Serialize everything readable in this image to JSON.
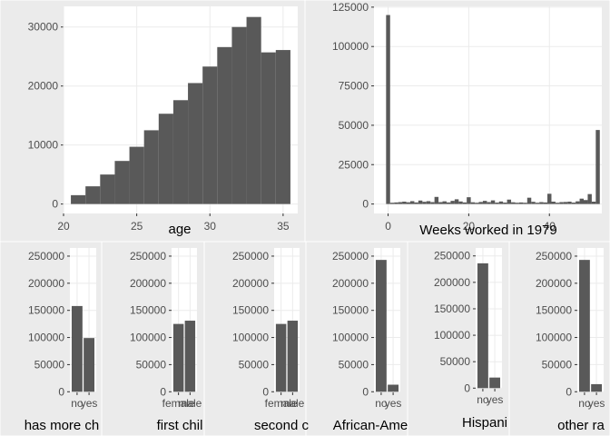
{
  "chart_data": [
    {
      "type": "bar",
      "name": "age-histogram",
      "xlabel": "age",
      "x_ticks": [
        20,
        25,
        30,
        35
      ],
      "y_ticks": [
        0,
        10000,
        20000,
        30000
      ],
      "xlim": [
        20,
        36
      ],
      "ylim": [
        -1600,
        33500
      ],
      "bin_width": 1,
      "bins": [
        21,
        22,
        23,
        24,
        25,
        26,
        27,
        28,
        29,
        30,
        31,
        32,
        33,
        34,
        35
      ],
      "values": [
        1500,
        3000,
        5000,
        7300,
        9700,
        12500,
        15300,
        17600,
        20500,
        23300,
        26600,
        30000,
        31700,
        25700,
        26100
      ]
    },
    {
      "type": "bar",
      "name": "weeks-histogram",
      "xlabel": "Weeks worked in 1979",
      "x_ticks": [
        0,
        20,
        40
      ],
      "y_ticks": [
        0,
        25000,
        50000,
        75000,
        100000,
        125000
      ],
      "xlim": [
        -3.5,
        53
      ],
      "ylim": [
        -6000,
        125500
      ],
      "bin_width": 1,
      "bins": [
        0,
        1,
        2,
        3,
        4,
        5,
        6,
        7,
        8,
        9,
        10,
        11,
        12,
        13,
        14,
        15,
        16,
        17,
        18,
        19,
        20,
        21,
        22,
        23,
        24,
        25,
        26,
        27,
        28,
        29,
        30,
        31,
        32,
        33,
        34,
        35,
        36,
        37,
        38,
        39,
        40,
        41,
        42,
        43,
        44,
        45,
        46,
        47,
        48,
        49,
        50,
        51,
        52
      ],
      "values": [
        120000,
        800,
        1000,
        1200,
        1500,
        1100,
        1800,
        1000,
        2200,
        1400,
        1800,
        1200,
        4500,
        1200,
        1700,
        1000,
        2000,
        3000,
        1600,
        1000,
        4300,
        1100,
        800,
        1300,
        2000,
        1200,
        2300,
        900,
        1600,
        900,
        2800,
        1100,
        800,
        1000,
        800,
        4000,
        1400,
        800,
        1200,
        1000,
        6500,
        1500,
        800,
        1200,
        1300,
        1500,
        900,
        1700,
        3400,
        2500,
        6300,
        1500,
        47000
      ]
    },
    {
      "type": "bar",
      "name": "has-more-children",
      "xlabel": "has more ch",
      "categories": [
        "no",
        "yes"
      ],
      "values": [
        158000,
        99000
      ],
      "y_ticks": [
        0,
        50000,
        100000,
        150000,
        200000,
        250000
      ],
      "ylim": [
        -1200,
        265000
      ]
    },
    {
      "type": "bar",
      "name": "first-child",
      "xlabel": "first chil",
      "categories": [
        "female",
        "male"
      ],
      "values": [
        125000,
        131000
      ],
      "y_ticks": [
        0,
        50000,
        100000,
        150000,
        200000,
        250000
      ],
      "ylim": [
        -1200,
        265000
      ]
    },
    {
      "type": "bar",
      "name": "second-child",
      "xlabel": "second c",
      "categories": [
        "female",
        "male"
      ],
      "values": [
        125000,
        131000
      ],
      "y_ticks": [
        0,
        50000,
        100000,
        150000,
        200000,
        250000
      ],
      "ylim": [
        -1200,
        265000
      ]
    },
    {
      "type": "bar",
      "name": "african-american",
      "xlabel": "African-Ame",
      "categories": [
        "no",
        "yes"
      ],
      "values": [
        243000,
        13000
      ],
      "y_ticks": [
        0,
        50000,
        100000,
        150000,
        200000,
        250000
      ],
      "ylim": [
        -1200,
        265000
      ]
    },
    {
      "type": "bar",
      "name": "hispanic",
      "xlabel": "Hispani",
      "categories": [
        "no",
        "yes"
      ],
      "values": [
        236000,
        20000
      ],
      "y_ticks": [
        0,
        50000,
        100000,
        150000,
        200000,
        250000
      ],
      "ylim": [
        -1200,
        265000
      ]
    },
    {
      "type": "bar",
      "name": "other-race",
      "xlabel": "other ra",
      "categories": [
        "no",
        "yes"
      ],
      "values": [
        243000,
        14000
      ],
      "y_ticks": [
        0,
        50000,
        100000,
        150000,
        200000,
        250000
      ],
      "ylim": [
        -1200,
        265000
      ]
    }
  ]
}
